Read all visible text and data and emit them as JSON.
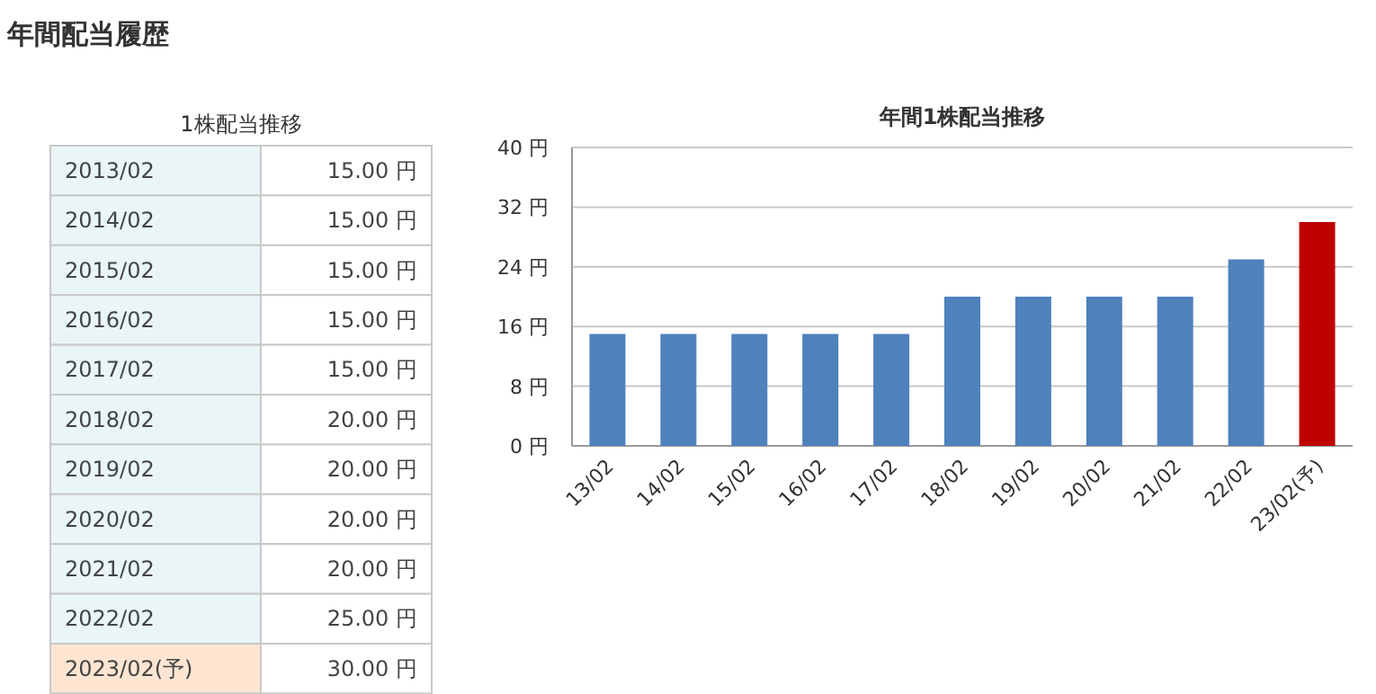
{
  "chart_data": [
    {
      "type": "other",
      "title": "1株配当推移",
      "annotations": [
        "年間配当履歴",
        "2013/02",
        "15.00 円",
        "2014/02",
        "15.00 円",
        "2015/02",
        "15.00 円",
        "2016/02",
        "15.00 円",
        "2017/02",
        "15.00 円",
        "2018/02",
        "20.00 円",
        "2019/02",
        "20.00 円",
        "2020/02",
        "20.00 円",
        "2021/02",
        "20.00 円",
        "2022/02",
        "25.00 円",
        "2023/02(予)",
        "30.00 円"
      ]
    },
    {
      "type": "bar",
      "title": "年間1株配当推移",
      "categories": [
        "13/02",
        "14/02",
        "15/02",
        "16/02",
        "17/02",
        "18/02",
        "19/02",
        "20/02",
        "21/02",
        "22/02",
        "23/02(予)"
      ],
      "values": [
        15,
        15,
        15,
        15,
        15,
        20,
        20,
        20,
        20,
        25,
        30
      ],
      "colors": [
        "#4f81bd",
        "#4f81bd",
        "#4f81bd",
        "#4f81bd",
        "#4f81bd",
        "#4f81bd",
        "#4f81bd",
        "#4f81bd",
        "#4f81bd",
        "#4f81bd",
        "#c00000"
      ],
      "ylim": [
        0,
        40
      ],
      "yticks": [
        {
          "value": 0,
          "label": "0 円"
        },
        {
          "value": 8,
          "label": "8 円"
        },
        {
          "value": 16,
          "label": "16 円"
        },
        {
          "value": 24,
          "label": "24 円"
        },
        {
          "value": 32,
          "label": "32 円"
        },
        {
          "value": 40,
          "label": "40 円"
        }
      ],
      "grid": "y"
    }
  ]
}
